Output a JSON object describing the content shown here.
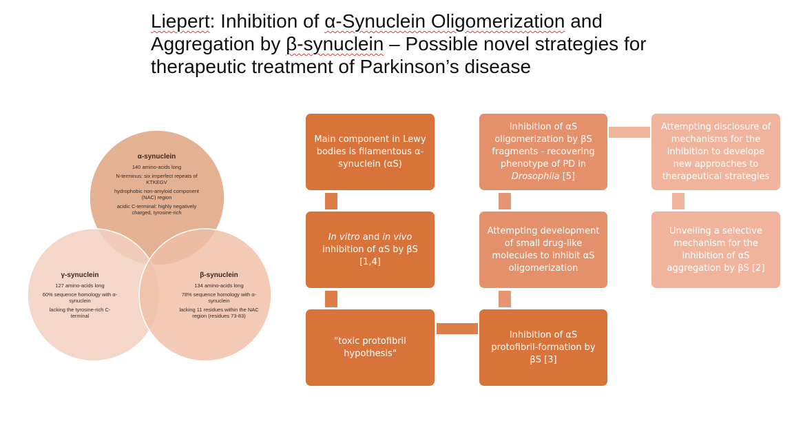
{
  "title": {
    "line1_pre": "Liepert",
    "line1_rest": ": Inhibition of ",
    "line1_b": "α-Synuclein Oligomerization",
    "line1_end": " and",
    "line2_pre": "Aggregation by ",
    "line2_b": "β-synuclein",
    "line2_end": " – Possible novel strategies for",
    "line3": "therapeutic treatment of Parkinson’s disease"
  },
  "venn": {
    "alpha": {
      "heading": "α-synuclein",
      "lines": [
        "140 amino-acids long",
        "N-terminus: six imperfect repeats of KTKEGV",
        "hydrophobic non-amyloid component (NAC) region",
        "acidic C-terminal: highly negatively charged, tyrosine-rich"
      ]
    },
    "gamma": {
      "heading": "γ-synuclein",
      "lines": [
        "127 amino-acids long",
        "60% sequence homology with α-synuclein",
        "lacking the tyrosine-rich C-terminal"
      ]
    },
    "beta": {
      "heading": "β-synuclein",
      "lines": [
        "134 amino-acids long",
        "78% sequence homology with α-synuclein",
        "lacking 11 residues within the NAC region (residues 73-83)"
      ]
    },
    "colors": {
      "alpha": "#e2aa8a",
      "gamma": "#f3d0c0",
      "beta": "#efbea6"
    }
  },
  "flow": {
    "box1": "Main component in Lewy bodies is filamentous α-synuclein (αS)",
    "box2_a": "In vitro",
    "box2_b": " and ",
    "box2_c": "in vivo",
    "box2_d": " inhibition of αS by βS [1,4]",
    "box3": "\"toxic protofibril hypothesis\"",
    "box4_a": "Inhibition of αS oligomerization by βS fragments - recovering phenotype of PD in ",
    "box4_b": "Drosophila",
    "box4_c": " [5]",
    "box5": "Attempting development of small drug-like molecules to inhibit αS oligomerization",
    "box6": "Inhibition of αS protofibril-formation by βS [3]",
    "box7": "Attempting disclosure of mechanisms for the inhibition to develope new approaches to therapeutical strategies",
    "box8": "Unveiling a selective mechanism for the inhibition of αS aggregation by βS [2]",
    "colors": {
      "dark": "#d8743a",
      "medium": "#e4906a",
      "light": "#f0b49c"
    }
  }
}
